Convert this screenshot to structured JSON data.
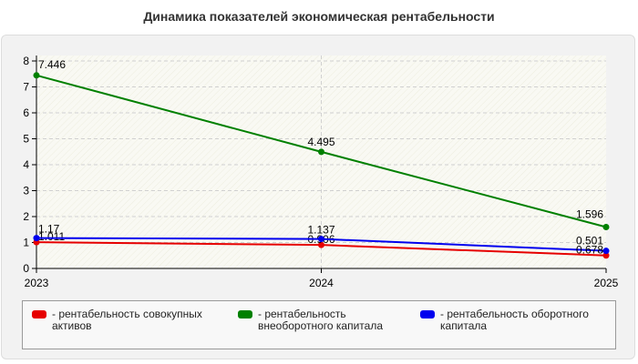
{
  "title": "Динамика показателей экономическая рентабельности",
  "chart_data": {
    "type": "line",
    "x": [
      "2023",
      "2024",
      "2025"
    ],
    "ylim": [
      0,
      8
    ],
    "yticks": [
      "0",
      "1",
      "2",
      "3",
      "4",
      "5",
      "6",
      "7",
      "8"
    ],
    "grid": true,
    "legend_position": "bottom",
    "series": [
      {
        "name": "- рентабельность совокупных активов",
        "color": "#e60000",
        "values": [
          1.011,
          0.906,
          0.501
        ],
        "labels": [
          "1.011",
          "0.906",
          "0.501"
        ]
      },
      {
        "name": "- рентабельность внеоборотного капитала",
        "color": "#008000",
        "values": [
          7.446,
          4.495,
          1.596
        ],
        "labels": [
          "7.446",
          "4.495",
          "1.596"
        ]
      },
      {
        "name": "- рентабельность оборотного капитала",
        "color": "#0000ee",
        "values": [
          1.17,
          1.137,
          0.678
        ],
        "labels": [
          "1.17",
          "1.137",
          "0.678"
        ]
      }
    ]
  }
}
